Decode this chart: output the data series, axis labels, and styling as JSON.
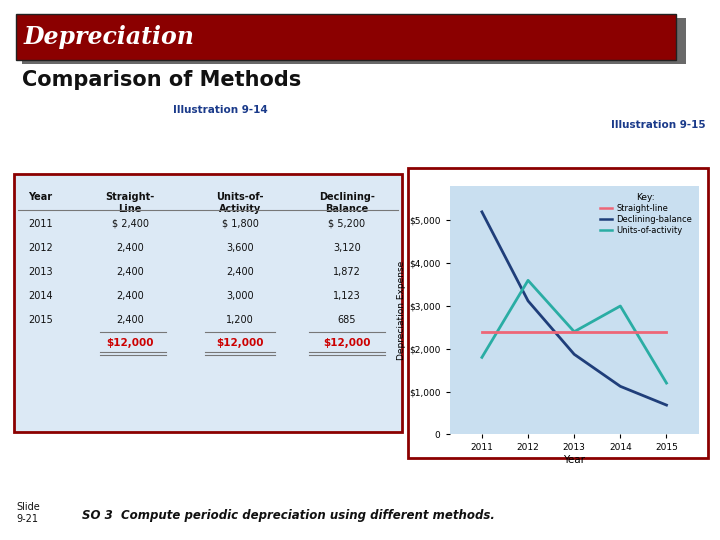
{
  "title_text": "Depreciation",
  "subtitle_text": "Comparison of Methods",
  "title_bg_color": "#8B0000",
  "title_text_color": "#FFFFFF",
  "slide_label": "Slide\n9-21",
  "footer_text": "SO 3  Compute periodic depreciation using different methods.",
  "illus_914_label": "Illustration 9-14",
  "illus_915_label": "Illustration 9-15",
  "table_border_color": "#8B0000",
  "table_bg_color": "#DCE9F5",
  "table_years": [
    "2011",
    "2012",
    "2013",
    "2014",
    "2015"
  ],
  "straight_line": [
    2400,
    2400,
    2400,
    2400,
    2400
  ],
  "units_activity": [
    1800,
    3600,
    2400,
    3000,
    1200
  ],
  "declining_balance": [
    5200,
    3120,
    1872,
    1123,
    685
  ],
  "straight_line_str": [
    "$ 2,400",
    "2,400",
    "2,400",
    "2,400",
    "2,400"
  ],
  "units_activity_str": [
    "$ 1,800",
    "3,600",
    "2,400",
    "3,000",
    "1,200"
  ],
  "declining_balance_str": [
    "$ 5,200",
    "3,120",
    "1,872",
    "1,123",
    "685"
  ],
  "total_str": "$12,000",
  "total_color": "#CC0000",
  "chart_bg_color": "#C9DFF0",
  "chart_border_color": "#8B0000",
  "straight_line_color": "#EE6677",
  "declining_balance_color": "#1F3E7A",
  "units_activity_color": "#2AADA4",
  "years": [
    2011,
    2012,
    2013,
    2014,
    2015
  ],
  "chart_xlabel": "Year",
  "chart_ylabel": "Depreciation Expense",
  "chart_yticks": [
    0,
    1000,
    2000,
    3000,
    4000,
    5000
  ],
  "chart_ytick_labels": [
    "0",
    "$1,000",
    "$2,000",
    "$3,000",
    "$4,000",
    "$5,000"
  ],
  "key_label": "Key:",
  "legend_straight": "Straight-line",
  "legend_declining": "Declining-balance",
  "legend_units": "Units-of-activity",
  "bg_color": "#FFFFFF",
  "label_color": "#1A3A8A",
  "shadow_color": "#444444"
}
